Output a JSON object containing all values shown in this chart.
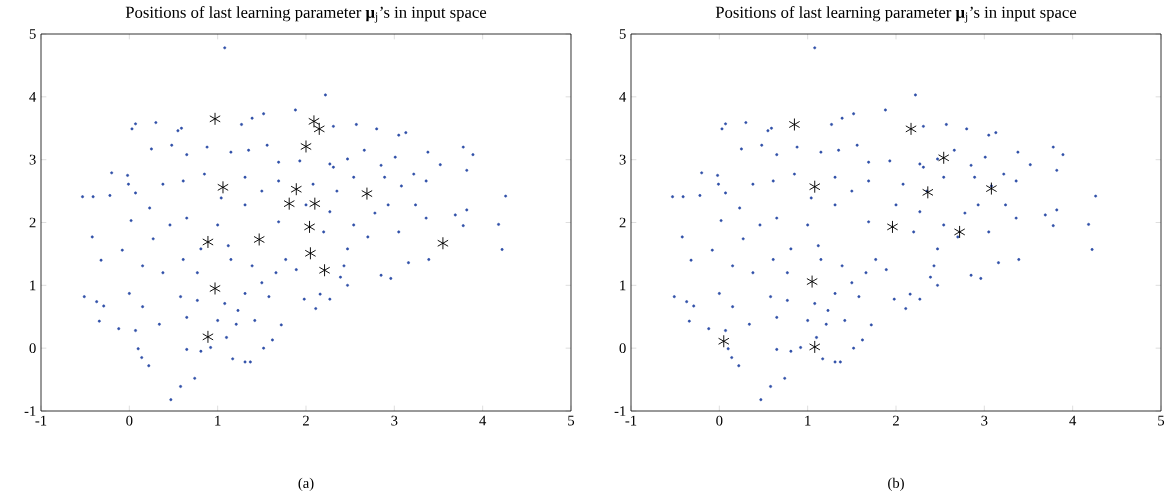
{
  "chart_data": [
    {
      "type": "scatter",
      "title": "Positions of last learning parameter **μ**$_{j}$’s in input space",
      "annotations": [
        "(a)"
      ],
      "xlim": [
        -1,
        5
      ],
      "ylim": [
        -1,
        5
      ],
      "xticks": [
        -1,
        0,
        1,
        2,
        3,
        4,
        5
      ],
      "yticks": [
        -1,
        0,
        1,
        2,
        3,
        4,
        5
      ],
      "grid": false,
      "series": [
        {
          "color": "#3050a8",
          "marker": "circle",
          "x": [
            1.08,
            2.22,
            1.88,
            0.03,
            0.07,
            0.3,
            0.55,
            0.59,
            1.52,
            1.39,
            1.27,
            2.31,
            2.57,
            2.8,
            3.13,
            3.05,
            3.78,
            3.89,
            3.38,
            3.52,
            3.82,
            4.26,
            4.18,
            4.22,
            3.82,
            3.78,
            3.69,
            3.39,
            3.16,
            2.96,
            2.85,
            2.47,
            2.39,
            2.27,
            2.16,
            2.11,
            1.98,
            1.72,
            1.62,
            1.52,
            1.37,
            1.31,
            1.17,
            0.74,
            0.58,
            0.47,
            0.22,
            0.14,
            0.1,
            -0.12,
            -0.34,
            -0.29,
            -0.37,
            -0.51,
            -0.32,
            -0.42,
            -0.08,
            0.02,
            -0.53,
            -0.41,
            -0.22,
            -0.2,
            -0.02,
            -0.01,
            0.07,
            0.25,
            0.48,
            0.65,
            0.88,
            1.15,
            1.35,
            1.56,
            1.69,
            1.93,
            2.27,
            2.47,
            2.66,
            2.85,
            3.01,
            3.22,
            3.36,
            3.08,
            2.89,
            2.54,
            2.31,
            2.35,
            2.93,
            3.24,
            3.36,
            3.05,
            2.7,
            2.47,
            2.43,
            2.2,
            1.69,
            1.77,
            1.89,
            1.66,
            1.5,
            1.39,
            1.15,
            1.0,
            1.31,
            1.5,
            1.69,
            1.31,
            0.85,
            0.61,
            0.38,
            0.23,
            0.46,
            0.65,
            0.27,
            0.15,
            0.38,
            0.61,
            0.77,
            0.58,
            0.77,
            1.08,
            1.23,
            1.31,
            1.42,
            1.0,
            0.65,
            0.34,
            0.15,
            0.0,
            0.07,
            0.92,
            0.81,
            0.65,
            1.1,
            1.21,
            1.58,
            1.12,
            0.81,
            1.04,
            2.0,
            2.27,
            2.78,
            2.54,
            2.08
          ],
          "values": [
            4.78,
            4.03,
            3.79,
            3.49,
            3.57,
            3.59,
            3.46,
            3.5,
            3.73,
            3.66,
            3.56,
            3.53,
            3.56,
            3.49,
            3.43,
            3.39,
            3.2,
            3.08,
            3.12,
            2.92,
            2.83,
            2.42,
            1.97,
            1.57,
            2.2,
            1.95,
            2.12,
            1.41,
            1.36,
            1.11,
            1.16,
            1.0,
            1.13,
            0.78,
            0.86,
            0.63,
            0.78,
            0.37,
            0.13,
            0.0,
            -0.22,
            -0.22,
            -0.17,
            -0.48,
            -0.61,
            -0.82,
            -0.28,
            -0.15,
            -0.01,
            0.31,
            0.43,
            0.67,
            0.74,
            0.82,
            1.4,
            1.77,
            1.56,
            2.03,
            2.41,
            2.41,
            2.43,
            2.79,
            2.75,
            2.61,
            2.47,
            3.17,
            3.23,
            3.08,
            3.2,
            3.12,
            3.15,
            3.23,
            2.96,
            2.98,
            2.93,
            3.01,
            3.15,
            2.91,
            3.04,
            2.77,
            2.66,
            2.58,
            2.72,
            2.72,
            2.88,
            2.5,
            2.28,
            2.28,
            2.07,
            1.85,
            1.77,
            1.58,
            1.31,
            1.85,
            2.01,
            1.41,
            1.25,
            1.2,
            1.04,
            1.31,
            1.41,
            1.96,
            2.28,
            2.5,
            2.66,
            2.72,
            2.77,
            2.66,
            2.61,
            2.23,
            1.96,
            2.07,
            1.74,
            1.31,
            1.2,
            1.41,
            1.2,
            0.82,
            0.76,
            0.71,
            0.6,
            0.87,
            0.44,
            0.44,
            0.49,
            0.38,
            0.66,
            0.87,
            0.28,
            0.01,
            -0.05,
            -0.02,
            0.17,
            0.38,
            0.82,
            1.63,
            1.58,
            2.39,
            2.28,
            2.17,
            2.15,
            1.96,
            2.61
          ]
        },
        {
          "color": "#000000",
          "marker": "cross",
          "x": [
            0.97,
            2.09,
            2.15,
            2.0,
            1.06,
            1.89,
            1.81,
            2.1,
            2.69,
            2.04,
            0.89,
            1.47,
            2.05,
            2.21,
            3.55,
            0.97,
            0.89
          ],
          "values": [
            3.65,
            3.61,
            3.49,
            3.21,
            2.56,
            2.53,
            2.3,
            2.3,
            2.46,
            1.93,
            1.69,
            1.73,
            1.51,
            1.24,
            1.67,
            0.95,
            0.18
          ]
        }
      ]
    },
    {
      "type": "scatter",
      "title": "Positions of last learning parameter **μ**$_{j}$’s in input space",
      "annotations": [
        "(b)"
      ],
      "xlim": [
        -1,
        5
      ],
      "ylim": [
        -1,
        5
      ],
      "xticks": [
        -1,
        0,
        1,
        2,
        3,
        4,
        5
      ],
      "yticks": [
        -1,
        0,
        1,
        2,
        3,
        4,
        5
      ],
      "grid": false,
      "series": [
        {
          "color": "#3050a8",
          "marker": "circle",
          "x": [
            1.08,
            2.22,
            1.88,
            0.03,
            0.07,
            0.3,
            0.55,
            0.59,
            1.52,
            1.39,
            1.27,
            2.31,
            2.57,
            2.8,
            3.13,
            3.05,
            3.78,
            3.89,
            3.38,
            3.52,
            3.82,
            4.26,
            4.18,
            4.22,
            3.82,
            3.78,
            3.69,
            3.39,
            3.16,
            2.96,
            2.85,
            2.47,
            2.39,
            2.27,
            2.16,
            2.11,
            1.98,
            1.72,
            1.62,
            1.52,
            1.37,
            1.31,
            1.17,
            0.74,
            0.58,
            0.47,
            0.22,
            0.14,
            0.1,
            -0.12,
            -0.34,
            -0.29,
            -0.37,
            -0.51,
            -0.32,
            -0.42,
            -0.08,
            0.02,
            -0.53,
            -0.41,
            -0.22,
            -0.2,
            -0.02,
            -0.01,
            0.07,
            0.25,
            0.48,
            0.65,
            0.88,
            1.15,
            1.35,
            1.56,
            1.69,
            1.93,
            2.27,
            2.47,
            2.66,
            2.85,
            3.01,
            3.22,
            3.36,
            3.08,
            2.89,
            2.54,
            2.31,
            2.35,
            2.93,
            3.24,
            3.36,
            3.05,
            2.7,
            2.47,
            2.43,
            2.2,
            1.69,
            1.77,
            1.89,
            1.66,
            1.5,
            1.39,
            1.15,
            1.0,
            1.31,
            1.5,
            1.69,
            1.31,
            0.85,
            0.61,
            0.38,
            0.23,
            0.46,
            0.65,
            0.27,
            0.15,
            0.38,
            0.61,
            0.77,
            0.58,
            0.77,
            1.08,
            1.23,
            1.31,
            1.42,
            1.0,
            0.65,
            0.34,
            0.15,
            0.0,
            0.07,
            0.92,
            0.81,
            0.65,
            1.1,
            1.21,
            1.58,
            1.12,
            0.81,
            1.04,
            2.0,
            2.27,
            2.78,
            2.54,
            2.08
          ],
          "values": [
            4.78,
            4.03,
            3.79,
            3.49,
            3.57,
            3.59,
            3.46,
            3.5,
            3.73,
            3.66,
            3.56,
            3.53,
            3.56,
            3.49,
            3.43,
            3.39,
            3.2,
            3.08,
            3.12,
            2.92,
            2.83,
            2.42,
            1.97,
            1.57,
            2.2,
            1.95,
            2.12,
            1.41,
            1.36,
            1.11,
            1.16,
            1.0,
            1.13,
            0.78,
            0.86,
            0.63,
            0.78,
            0.37,
            0.13,
            0.0,
            -0.22,
            -0.22,
            -0.17,
            -0.48,
            -0.61,
            -0.82,
            -0.28,
            -0.15,
            -0.01,
            0.31,
            0.43,
            0.67,
            0.74,
            0.82,
            1.4,
            1.77,
            1.56,
            2.03,
            2.41,
            2.41,
            2.43,
            2.79,
            2.75,
            2.61,
            2.47,
            3.17,
            3.23,
            3.08,
            3.2,
            3.12,
            3.15,
            3.23,
            2.96,
            2.98,
            2.93,
            3.01,
            3.15,
            2.91,
            3.04,
            2.77,
            2.66,
            2.58,
            2.72,
            2.72,
            2.88,
            2.5,
            2.28,
            2.28,
            2.07,
            1.85,
            1.77,
            1.58,
            1.31,
            1.85,
            2.01,
            1.41,
            1.25,
            1.2,
            1.04,
            1.31,
            1.41,
            1.96,
            2.28,
            2.5,
            2.66,
            2.72,
            2.77,
            2.66,
            2.61,
            2.23,
            1.96,
            2.07,
            1.74,
            1.31,
            1.2,
            1.41,
            1.2,
            0.82,
            0.76,
            0.71,
            0.6,
            0.87,
            0.44,
            0.44,
            0.49,
            0.38,
            0.66,
            0.87,
            0.28,
            0.01,
            -0.05,
            -0.02,
            0.17,
            0.38,
            0.82,
            1.63,
            1.58,
            2.39,
            2.28,
            2.17,
            2.15,
            1.96,
            2.61
          ]
        },
        {
          "color": "#000000",
          "marker": "cross",
          "x": [
            0.85,
            2.17,
            2.54,
            1.08,
            2.36,
            3.08,
            1.96,
            2.72,
            1.05,
            0.05,
            1.08
          ],
          "values": [
            3.56,
            3.49,
            3.03,
            2.57,
            2.48,
            2.54,
            1.93,
            1.85,
            1.06,
            0.11,
            0.02
          ]
        }
      ]
    }
  ]
}
